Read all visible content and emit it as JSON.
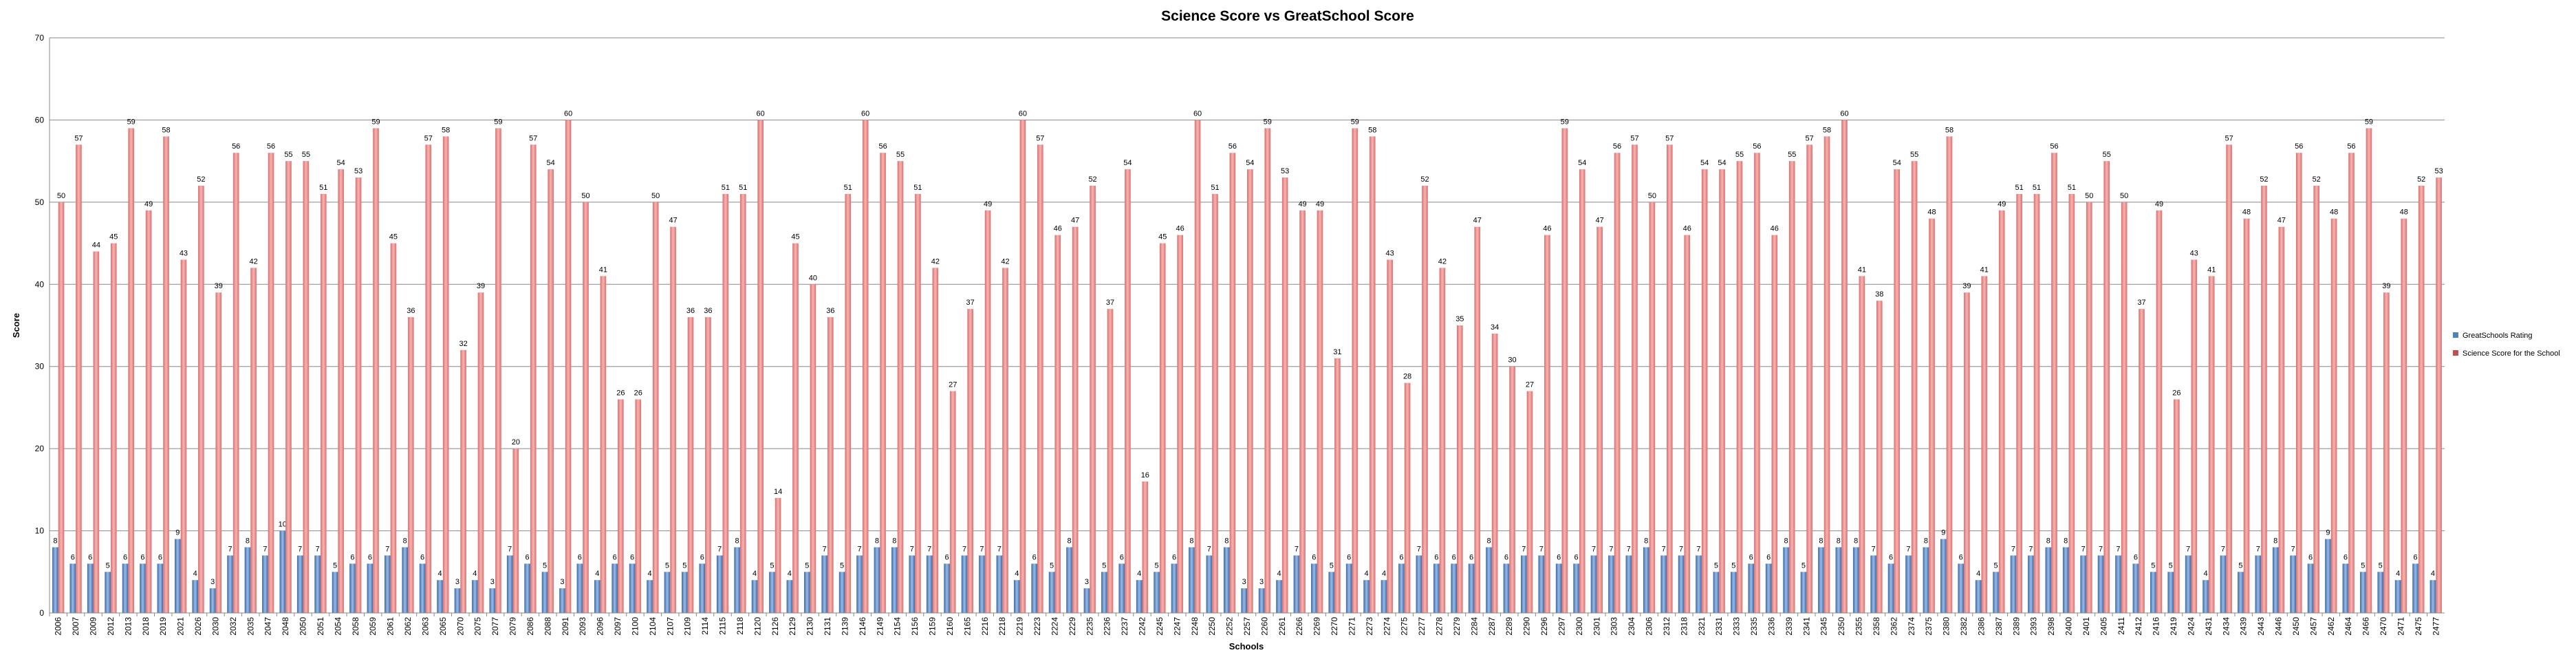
{
  "chart_data": {
    "type": "bar",
    "title": "Science Score vs GreatSchool Score",
    "xlabel": "Schools",
    "ylabel": "Score",
    "categories": [
      "2006",
      "2007",
      "2009",
      "2012",
      "2013",
      "2018",
      "2019",
      "2021",
      "2026",
      "2030",
      "2032",
      "2035",
      "2047",
      "2048",
      "2050",
      "2051",
      "2054",
      "2058",
      "2059",
      "2061",
      "2062",
      "2063",
      "2065",
      "2070",
      "2075",
      "2077",
      "2079",
      "2086",
      "2088",
      "2091",
      "2093",
      "2096",
      "2097",
      "2100",
      "2104",
      "2107",
      "2109",
      "2114",
      "2115",
      "2118",
      "2120",
      "2126",
      "2129",
      "2130",
      "2131",
      "2139",
      "2146",
      "2149",
      "2154",
      "2156",
      "2159",
      "2160",
      "2165",
      "2216",
      "2218",
      "2219",
      "2223",
      "2224",
      "2229",
      "2235",
      "2236",
      "2237",
      "2242",
      "2245",
      "2247",
      "2248",
      "2250",
      "2252",
      "2257",
      "2260",
      "2261",
      "2266",
      "2269",
      "2270",
      "2271",
      "2273",
      "2274",
      "2275",
      "2277",
      "2278",
      "2279",
      "2284",
      "2287",
      "2289",
      "2290",
      "2296",
      "2297",
      "2300",
      "2301",
      "2303",
      "2304",
      "2306",
      "2312",
      "2318",
      "2321",
      "2331",
      "2333",
      "2335",
      "2336",
      "2339",
      "2341",
      "2345",
      "2350",
      "2355",
      "2358",
      "2362",
      "2374",
      "2375",
      "2380",
      "2382",
      "2386",
      "2387",
      "2389",
      "2393",
      "2398",
      "2400",
      "2401",
      "2405",
      "2411",
      "2412",
      "2416",
      "2419",
      "2424",
      "2431",
      "2434",
      "2439",
      "2443",
      "2446",
      "2450",
      "2457",
      "2462",
      "2464",
      "2466",
      "2470",
      "2471",
      "2475",
      "2477"
    ],
    "series": [
      {
        "name": "GreatSchools Rating",
        "color": "#4f81bd",
        "values": [
          8,
          6,
          6,
          5,
          6,
          6,
          6,
          9,
          4,
          3,
          7,
          8,
          7,
          10,
          7,
          7,
          5,
          6,
          6,
          7,
          8,
          6,
          4,
          3,
          4,
          3,
          7,
          6,
          5,
          3,
          6,
          4,
          6,
          6,
          4,
          5,
          5,
          6,
          7,
          8,
          4,
          5,
          4,
          5,
          7,
          5,
          7,
          8,
          8,
          7,
          7,
          6,
          7,
          7,
          7,
          4,
          6,
          5,
          8,
          3,
          5,
          6,
          4,
          5,
          6,
          8,
          7,
          8,
          3,
          3,
          4,
          7,
          6,
          5,
          6,
          4,
          4,
          6,
          7,
          6,
          6,
          6,
          8,
          6,
          7,
          7,
          6,
          6,
          7,
          7,
          7,
          8,
          7,
          7,
          7,
          5,
          5,
          6,
          6,
          8,
          5,
          8,
          8,
          8,
          7,
          6,
          7,
          8,
          9,
          6,
          4,
          5,
          7,
          7,
          8,
          8,
          7,
          7,
          7,
          6,
          5,
          5,
          7,
          4,
          7,
          5,
          7,
          8,
          7,
          6,
          9,
          6,
          5,
          5,
          4,
          6,
          4
        ]
      },
      {
        "name": "Science Score for the School",
        "color": "#c0504d",
        "values": [
          50,
          57,
          44,
          45,
          59,
          49,
          58,
          43,
          52,
          39,
          56,
          42,
          56,
          55,
          55,
          51,
          54,
          53,
          59,
          45,
          36,
          57,
          58,
          32,
          39,
          59,
          20,
          57,
          54,
          60,
          50,
          41,
          26,
          26,
          50,
          47,
          36,
          36,
          51,
          51,
          60,
          14,
          45,
          40,
          36,
          51,
          60,
          56,
          55,
          51,
          42,
          27,
          37,
          49,
          42,
          60,
          57,
          46,
          47,
          52,
          37,
          54,
          16,
          45,
          46,
          60,
          51,
          56,
          54,
          59,
          53,
          49,
          49,
          31,
          59,
          58,
          43,
          28,
          52,
          42,
          35,
          47,
          34,
          30,
          27,
          46,
          59,
          54,
          47,
          56,
          57,
          50,
          57,
          46,
          54,
          54,
          55,
          56,
          46,
          55,
          57,
          58,
          60,
          41,
          38,
          54,
          55,
          48,
          58,
          39,
          41,
          49,
          51,
          51,
          56,
          51,
          50,
          55,
          50,
          37,
          49,
          26,
          43,
          41,
          57,
          48,
          52,
          47,
          56,
          52,
          48,
          56,
          59,
          39,
          48,
          52,
          53
        ]
      }
    ],
    "ylim": [
      0,
      70
    ],
    "yticks": [
      0,
      10,
      20,
      30,
      40,
      50,
      60,
      70
    ],
    "grid": true,
    "legend": "right"
  }
}
